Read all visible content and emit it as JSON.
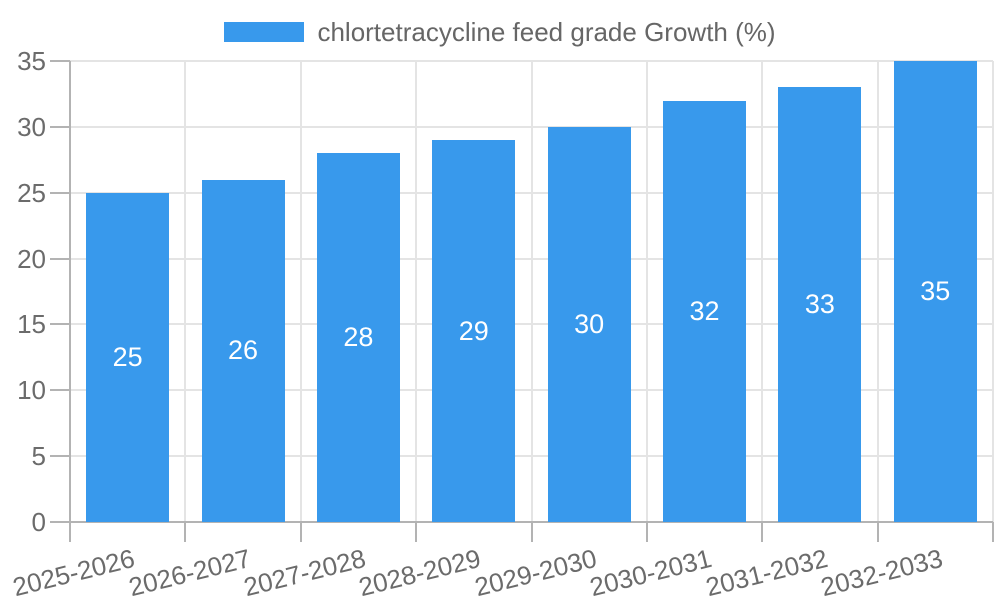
{
  "legend": {
    "label": "chlortetracycline feed grade Growth (%)"
  },
  "chart_data": {
    "type": "bar",
    "title": "chlortetracycline feed grade Growth (%)",
    "categories": [
      "2025-2026",
      "2026-2027",
      "2027-2028",
      "2028-2029",
      "2029-2030",
      "2030-2031",
      "2031-2032",
      "2032-2033"
    ],
    "values": [
      25,
      26,
      28,
      29,
      30,
      32,
      33,
      35
    ],
    "value_labels": [
      "25",
      "26",
      "28",
      "29",
      "30",
      "32",
      "33",
      "35"
    ],
    "xlabel": "",
    "ylabel": "",
    "ylim": [
      0,
      35
    ],
    "yticks": [
      0,
      5,
      10,
      15,
      20,
      25,
      30,
      35
    ],
    "grid": true,
    "legend_position": "top-center",
    "bar_label_position": "center-inside"
  },
  "colors": {
    "bar": "#3899EC",
    "grid": "#E4E4E4",
    "axis": "#B3B3B3",
    "tick_text": "#6B6B6B",
    "legend_text": "#666666",
    "bar_value_text": "#FFFFFF",
    "background": "#FFFFFF"
  }
}
